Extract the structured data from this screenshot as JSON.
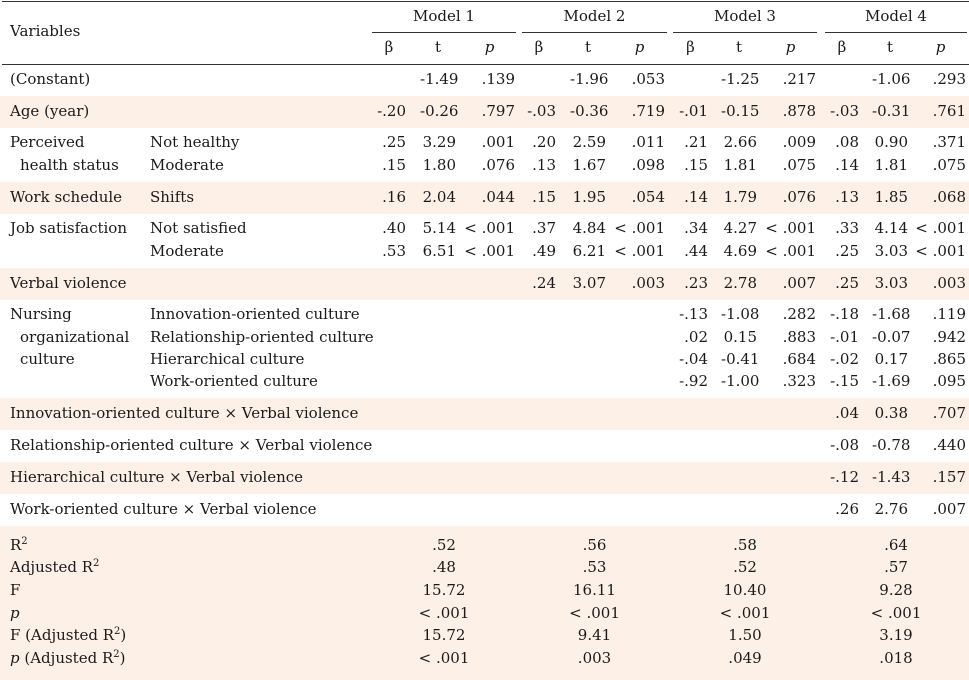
{
  "header": {
    "variables": "Variables",
    "models": [
      "Model 1",
      "Model 2",
      "Model 3",
      "Model 4"
    ],
    "sub": [
      "β",
      "t",
      "p"
    ]
  },
  "rows": [
    {
      "label": "(Constant)",
      "sub": "",
      "band": false,
      "m": [
        [
          "",
          "-1.49",
          ".139"
        ],
        [
          "",
          "-1.96",
          ".053"
        ],
        [
          "",
          "-1.25",
          ".217"
        ],
        [
          "",
          "-1.06",
          ".293"
        ]
      ]
    },
    {
      "label": "Age (year)",
      "sub": "",
      "band": true,
      "m": [
        [
          "-.20",
          "-0.26",
          ".797"
        ],
        [
          "-.03",
          "-0.36",
          ".719"
        ],
        [
          "-.01",
          "-0.15",
          ".878"
        ],
        [
          "-.03",
          "-0.31",
          ".761"
        ]
      ]
    },
    {
      "label": "Perceived",
      "sub": "Not healthy",
      "band": false,
      "m": [
        [
          ".25",
          "3.29",
          ".001"
        ],
        [
          ".20",
          "2.59",
          ".011"
        ],
        [
          ".21",
          "2.66",
          ".009"
        ],
        [
          ".08",
          "0.90",
          ".371"
        ]
      ]
    },
    {
      "label": "  health status",
      "sub": "Moderate",
      "band": false,
      "m": [
        [
          ".15",
          "1.80",
          ".076"
        ],
        [
          ".13",
          "1.67",
          ".098"
        ],
        [
          ".15",
          "1.81",
          ".075"
        ],
        [
          ".14",
          "1.81",
          ".075"
        ]
      ]
    },
    {
      "label": "Work schedule",
      "sub": "Shifts",
      "band": true,
      "m": [
        [
          ".16",
          "2.04",
          ".044"
        ],
        [
          ".15",
          "1.95",
          ".054"
        ],
        [
          ".14",
          "1.79",
          ".076"
        ],
        [
          ".13",
          "1.85",
          ".068"
        ]
      ]
    },
    {
      "label": "Job satisfaction",
      "sub": "Not satisfied",
      "band": false,
      "m": [
        [
          ".40",
          "5.14",
          "< .001"
        ],
        [
          ".37",
          "4.84",
          "< .001"
        ],
        [
          ".34",
          "4.27",
          "< .001"
        ],
        [
          ".33",
          "4.14",
          "< .001"
        ]
      ]
    },
    {
      "label": "",
      "sub": "Moderate",
      "band": false,
      "m": [
        [
          ".53",
          "6.51",
          "< .001"
        ],
        [
          ".49",
          "6.21",
          "< .001"
        ],
        [
          ".44",
          "4.69",
          "< .001"
        ],
        [
          ".25",
          "3.03",
          "< .001"
        ]
      ]
    },
    {
      "label": "Verbal violence",
      "sub": "",
      "band": true,
      "m": [
        [
          "",
          "",
          ""
        ],
        [
          ".24",
          "3.07",
          ".003"
        ],
        [
          ".23",
          "2.78",
          ".007"
        ],
        [
          ".25",
          "3.03",
          ".003"
        ]
      ]
    },
    {
      "label": "Nursing",
      "sub": "Innovation-oriented culture",
      "band": false,
      "m": [
        [
          "",
          "",
          ""
        ],
        [
          "",
          "",
          ""
        ],
        [
          "-.13",
          "-1.08",
          ".282"
        ],
        [
          "-.18",
          "-1.68",
          ".119"
        ]
      ]
    },
    {
      "label": "  organizational",
      "sub": "Relationship-oriented culture",
      "band": false,
      "m": [
        [
          "",
          "",
          ""
        ],
        [
          "",
          "",
          ""
        ],
        [
          ".02",
          "0.15",
          ".883"
        ],
        [
          "-.01",
          "-0.07",
          ".942"
        ]
      ]
    },
    {
      "label": "  culture",
      "sub": "Hierarchical culture",
      "band": false,
      "m": [
        [
          "",
          "",
          ""
        ],
        [
          "",
          "",
          ""
        ],
        [
          "-.04",
          "-0.41",
          ".684"
        ],
        [
          "-.02",
          "0.17",
          ".865"
        ]
      ]
    },
    {
      "label": "",
      "sub": "Work-oriented culture",
      "band": false,
      "m": [
        [
          "",
          "",
          ""
        ],
        [
          "",
          "",
          ""
        ],
        [
          "-.92",
          "-1.00",
          ".323"
        ],
        [
          "-.15",
          "-1.69",
          ".095"
        ]
      ]
    },
    {
      "label": "Innovation-oriented culture × Verbal violence",
      "sub": "",
      "band": true,
      "m": [
        [
          "",
          "",
          ""
        ],
        [
          "",
          "",
          ""
        ],
        [
          "",
          "",
          ""
        ],
        [
          ".04",
          "0.38",
          ".707"
        ]
      ]
    },
    {
      "label": "Relationship-oriented culture × Verbal violence",
      "sub": "",
      "band": false,
      "m": [
        [
          "",
          "",
          ""
        ],
        [
          "",
          "",
          ""
        ],
        [
          "",
          "",
          ""
        ],
        [
          "-.08",
          "-0.78",
          ".440"
        ]
      ]
    },
    {
      "label": "Hierarchical culture × Verbal violence",
      "sub": "",
      "band": true,
      "m": [
        [
          "",
          "",
          ""
        ],
        [
          "",
          "",
          ""
        ],
        [
          "",
          "",
          ""
        ],
        [
          "-.12",
          "-1.43",
          ".157"
        ]
      ]
    },
    {
      "label": "Work-oriented culture × Verbal violence",
      "sub": "",
      "band": false,
      "m": [
        [
          "",
          "",
          ""
        ],
        [
          "",
          "",
          ""
        ],
        [
          "",
          "",
          ""
        ],
        [
          ".26",
          "2.76",
          ".007"
        ]
      ]
    }
  ],
  "stats": [
    {
      "base": "R",
      "sup": "2",
      "tail": "",
      "italic": false,
      "v": [
        ".52",
        ".56",
        ".58",
        ".64"
      ]
    },
    {
      "base": "Adjusted R",
      "sup": "2",
      "tail": "",
      "italic": false,
      "v": [
        ".48",
        ".53",
        ".52",
        ".57"
      ]
    },
    {
      "base": "F",
      "sup": "",
      "tail": "",
      "italic": false,
      "v": [
        "15.72",
        "16.11",
        "10.40",
        "9.28"
      ]
    },
    {
      "base": "p",
      "sup": "",
      "tail": "",
      "italic": true,
      "v": [
        "< .001",
        "< .001",
        "< .001",
        "< .001"
      ]
    },
    {
      "base": "F (Adjusted R",
      "sup": "2",
      "tail": ")",
      "italic": false,
      "v": [
        "15.72",
        "9.41",
        "1.50",
        "3.19"
      ]
    },
    {
      "base": "p",
      "sup": "2",
      "tail": ")",
      "italic": true,
      "mid": " (Adjusted R",
      "v": [
        "< .001",
        ".003",
        ".049",
        ".018"
      ]
    }
  ]
}
